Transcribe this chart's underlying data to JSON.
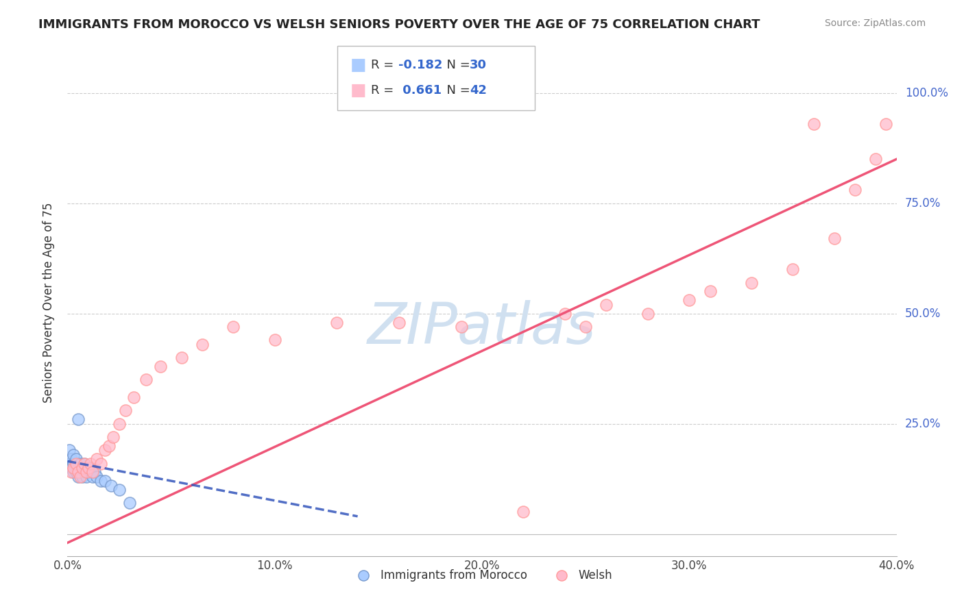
{
  "title": "IMMIGRANTS FROM MOROCCO VS WELSH SENIORS POVERTY OVER THE AGE OF 75 CORRELATION CHART",
  "source": "Source: ZipAtlas.com",
  "ylabel": "Seniors Poverty Over the Age of 75",
  "xlim": [
    0.0,
    0.4
  ],
  "ylim": [
    -0.05,
    1.1
  ],
  "xticks": [
    0.0,
    0.1,
    0.2,
    0.3,
    0.4
  ],
  "xtick_labels": [
    "0.0%",
    "10.0%",
    "20.0%",
    "30.0%",
    "40.0%"
  ],
  "yticks": [
    0.0,
    0.25,
    0.5,
    0.75,
    1.0
  ],
  "ytick_labels": [
    "",
    "25.0%",
    "50.0%",
    "75.0%",
    "100.0%"
  ],
  "grid_color": "#cccccc",
  "background_color": "#ffffff",
  "morocco_color": "#aaccff",
  "welsh_color": "#ffbbcc",
  "morocco_edge_color": "#7799cc",
  "welsh_edge_color": "#ff9999",
  "morocco_line_color": "#3355bb",
  "welsh_line_color": "#ee5577",
  "watermark_color": "#d0e0f0",
  "legend_R1": "-0.182",
  "legend_N1": "30",
  "legend_R2": "0.661",
  "legend_N2": "42",
  "morocco_x": [
    0.001,
    0.001,
    0.002,
    0.002,
    0.003,
    0.003,
    0.003,
    0.004,
    0.004,
    0.004,
    0.005,
    0.005,
    0.005,
    0.006,
    0.006,
    0.007,
    0.007,
    0.008,
    0.008,
    0.009,
    0.01,
    0.011,
    0.012,
    0.013,
    0.014,
    0.016,
    0.018,
    0.021,
    0.025,
    0.03
  ],
  "morocco_y": [
    0.16,
    0.19,
    0.15,
    0.17,
    0.14,
    0.16,
    0.18,
    0.15,
    0.17,
    0.14,
    0.26,
    0.15,
    0.13,
    0.16,
    0.14,
    0.15,
    0.13,
    0.16,
    0.14,
    0.13,
    0.14,
    0.15,
    0.13,
    0.14,
    0.13,
    0.12,
    0.12,
    0.11,
    0.1,
    0.07
  ],
  "welsh_x": [
    0.002,
    0.003,
    0.004,
    0.005,
    0.006,
    0.007,
    0.008,
    0.009,
    0.01,
    0.011,
    0.012,
    0.014,
    0.016,
    0.018,
    0.02,
    0.022,
    0.025,
    0.028,
    0.032,
    0.038,
    0.045,
    0.055,
    0.065,
    0.08,
    0.1,
    0.13,
    0.16,
    0.19,
    0.22,
    0.25,
    0.28,
    0.31,
    0.33,
    0.35,
    0.36,
    0.37,
    0.38,
    0.39,
    0.395,
    0.24,
    0.26,
    0.3
  ],
  "welsh_y": [
    0.14,
    0.15,
    0.16,
    0.14,
    0.13,
    0.15,
    0.16,
    0.14,
    0.15,
    0.16,
    0.14,
    0.17,
    0.16,
    0.19,
    0.2,
    0.22,
    0.25,
    0.28,
    0.31,
    0.35,
    0.38,
    0.4,
    0.43,
    0.47,
    0.44,
    0.48,
    0.48,
    0.47,
    0.05,
    0.47,
    0.5,
    0.55,
    0.57,
    0.6,
    0.93,
    0.67,
    0.78,
    0.85,
    0.93,
    0.5,
    0.52,
    0.53
  ],
  "welsh_trend_x0": 0.0,
  "welsh_trend_y0": -0.02,
  "welsh_trend_x1": 0.4,
  "welsh_trend_y1": 0.85,
  "morocco_trend_x0": 0.0,
  "morocco_trend_y0": 0.165,
  "morocco_trend_x1": 0.14,
  "morocco_trend_y1": 0.04
}
